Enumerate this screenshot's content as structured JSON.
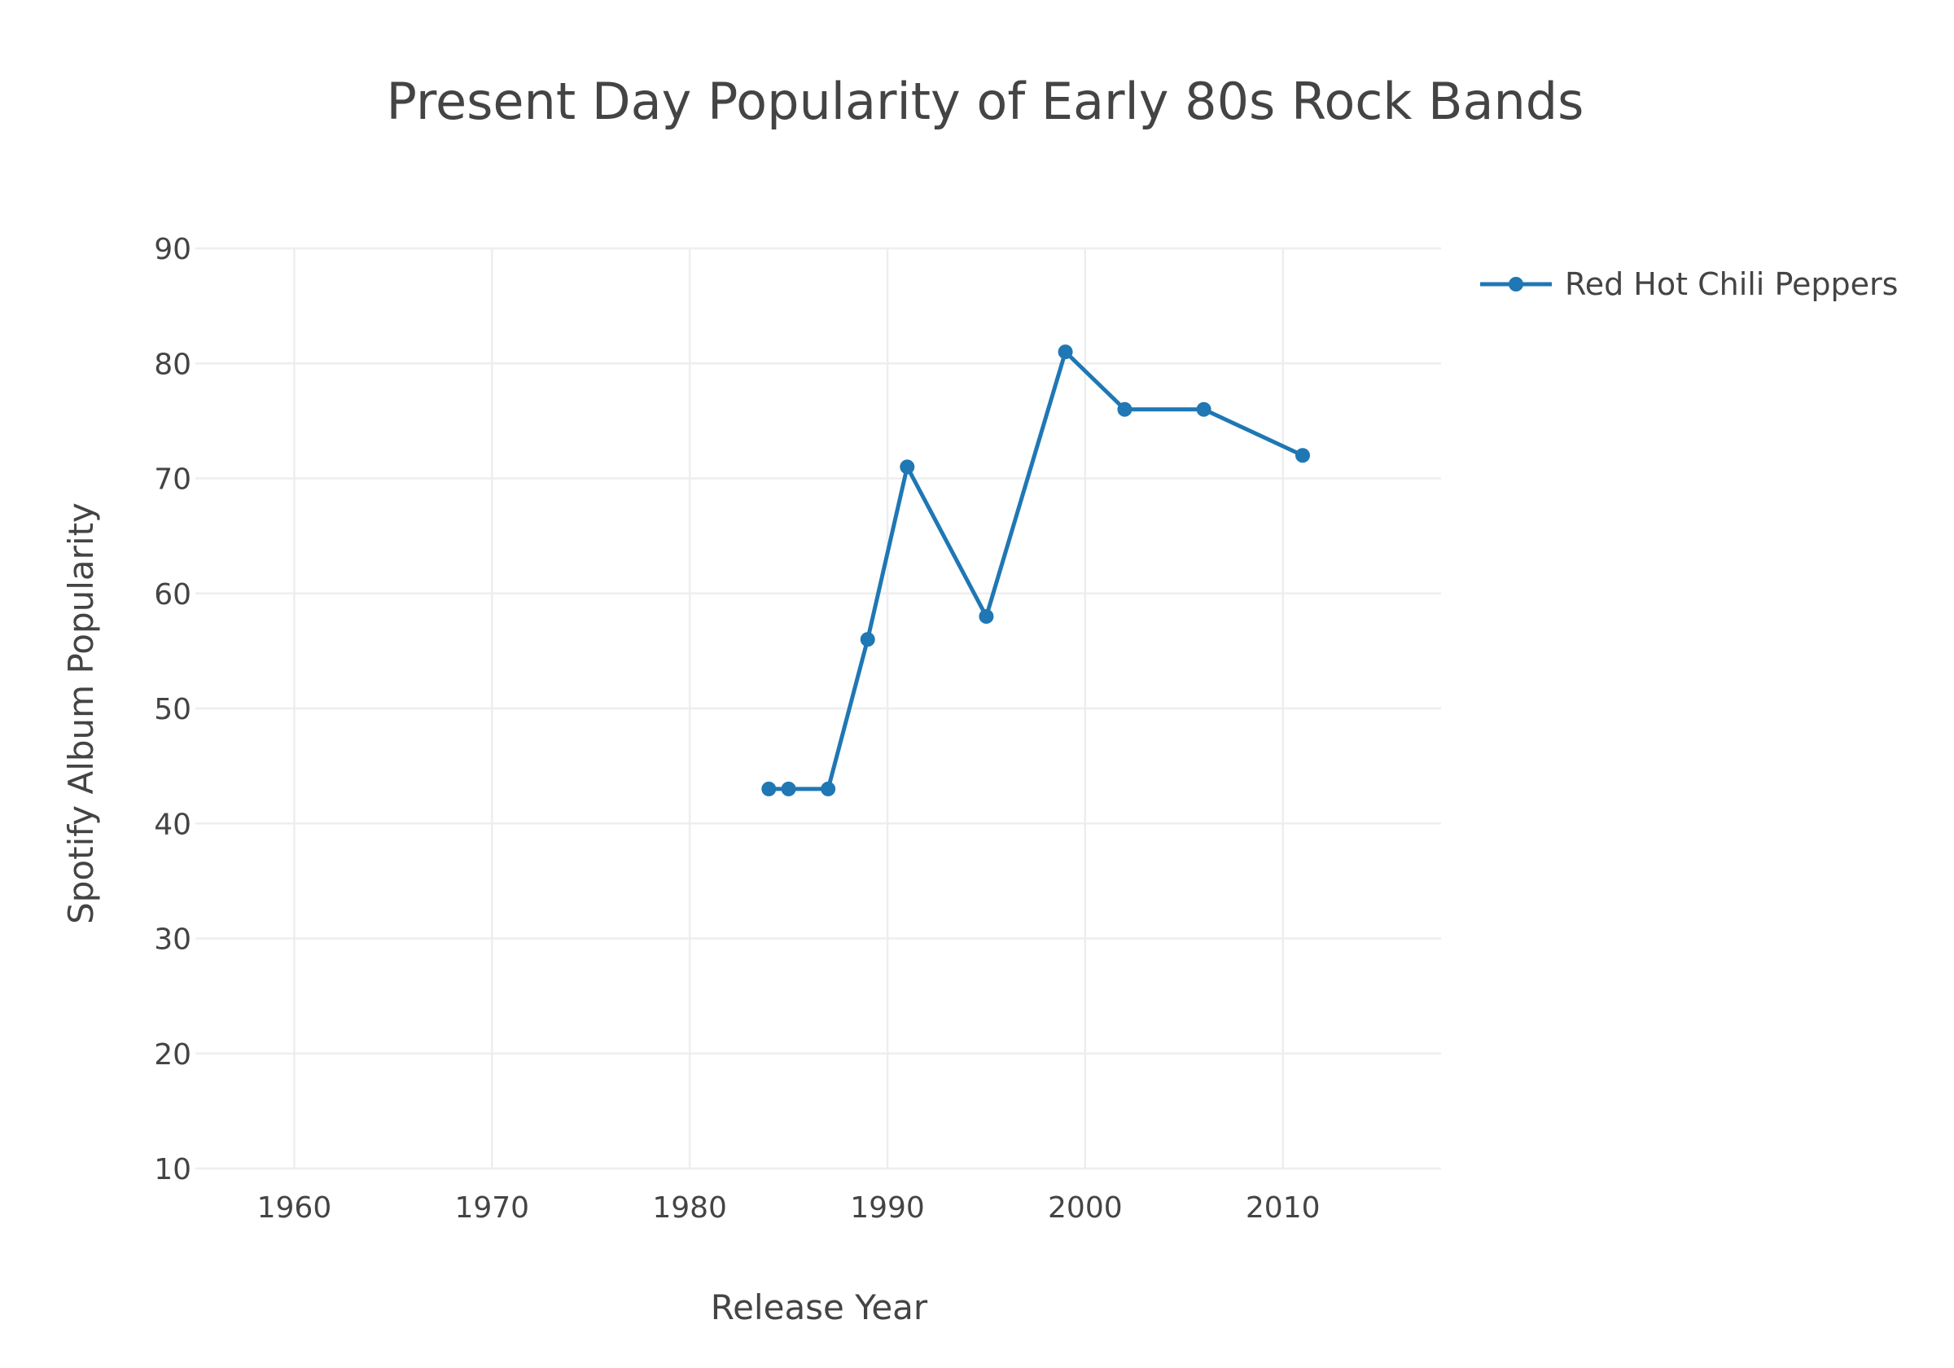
{
  "chart_data": {
    "type": "line",
    "title": "Present Day Popularity of Early 80s Rock Bands",
    "xlabel": "Release Year",
    "ylabel": "Spotify Album Popularity",
    "xlim": [
      1955,
      2018
    ],
    "ylim": [
      10,
      90
    ],
    "x_ticks": [
      1960,
      1970,
      1980,
      1990,
      2000,
      2010
    ],
    "y_ticks": [
      10,
      20,
      30,
      40,
      50,
      60,
      70,
      80,
      90
    ],
    "grid": true,
    "legend_position": "top-right",
    "series": [
      {
        "name": "Red Hot Chili Peppers",
        "color": "#1f77b4",
        "marker": "circle",
        "x": [
          1984,
          1985,
          1987,
          1989,
          1991,
          1995,
          1999,
          2002,
          2006,
          2011
        ],
        "y": [
          43,
          43,
          43,
          56,
          71,
          58,
          81,
          76,
          76,
          72
        ]
      }
    ]
  }
}
